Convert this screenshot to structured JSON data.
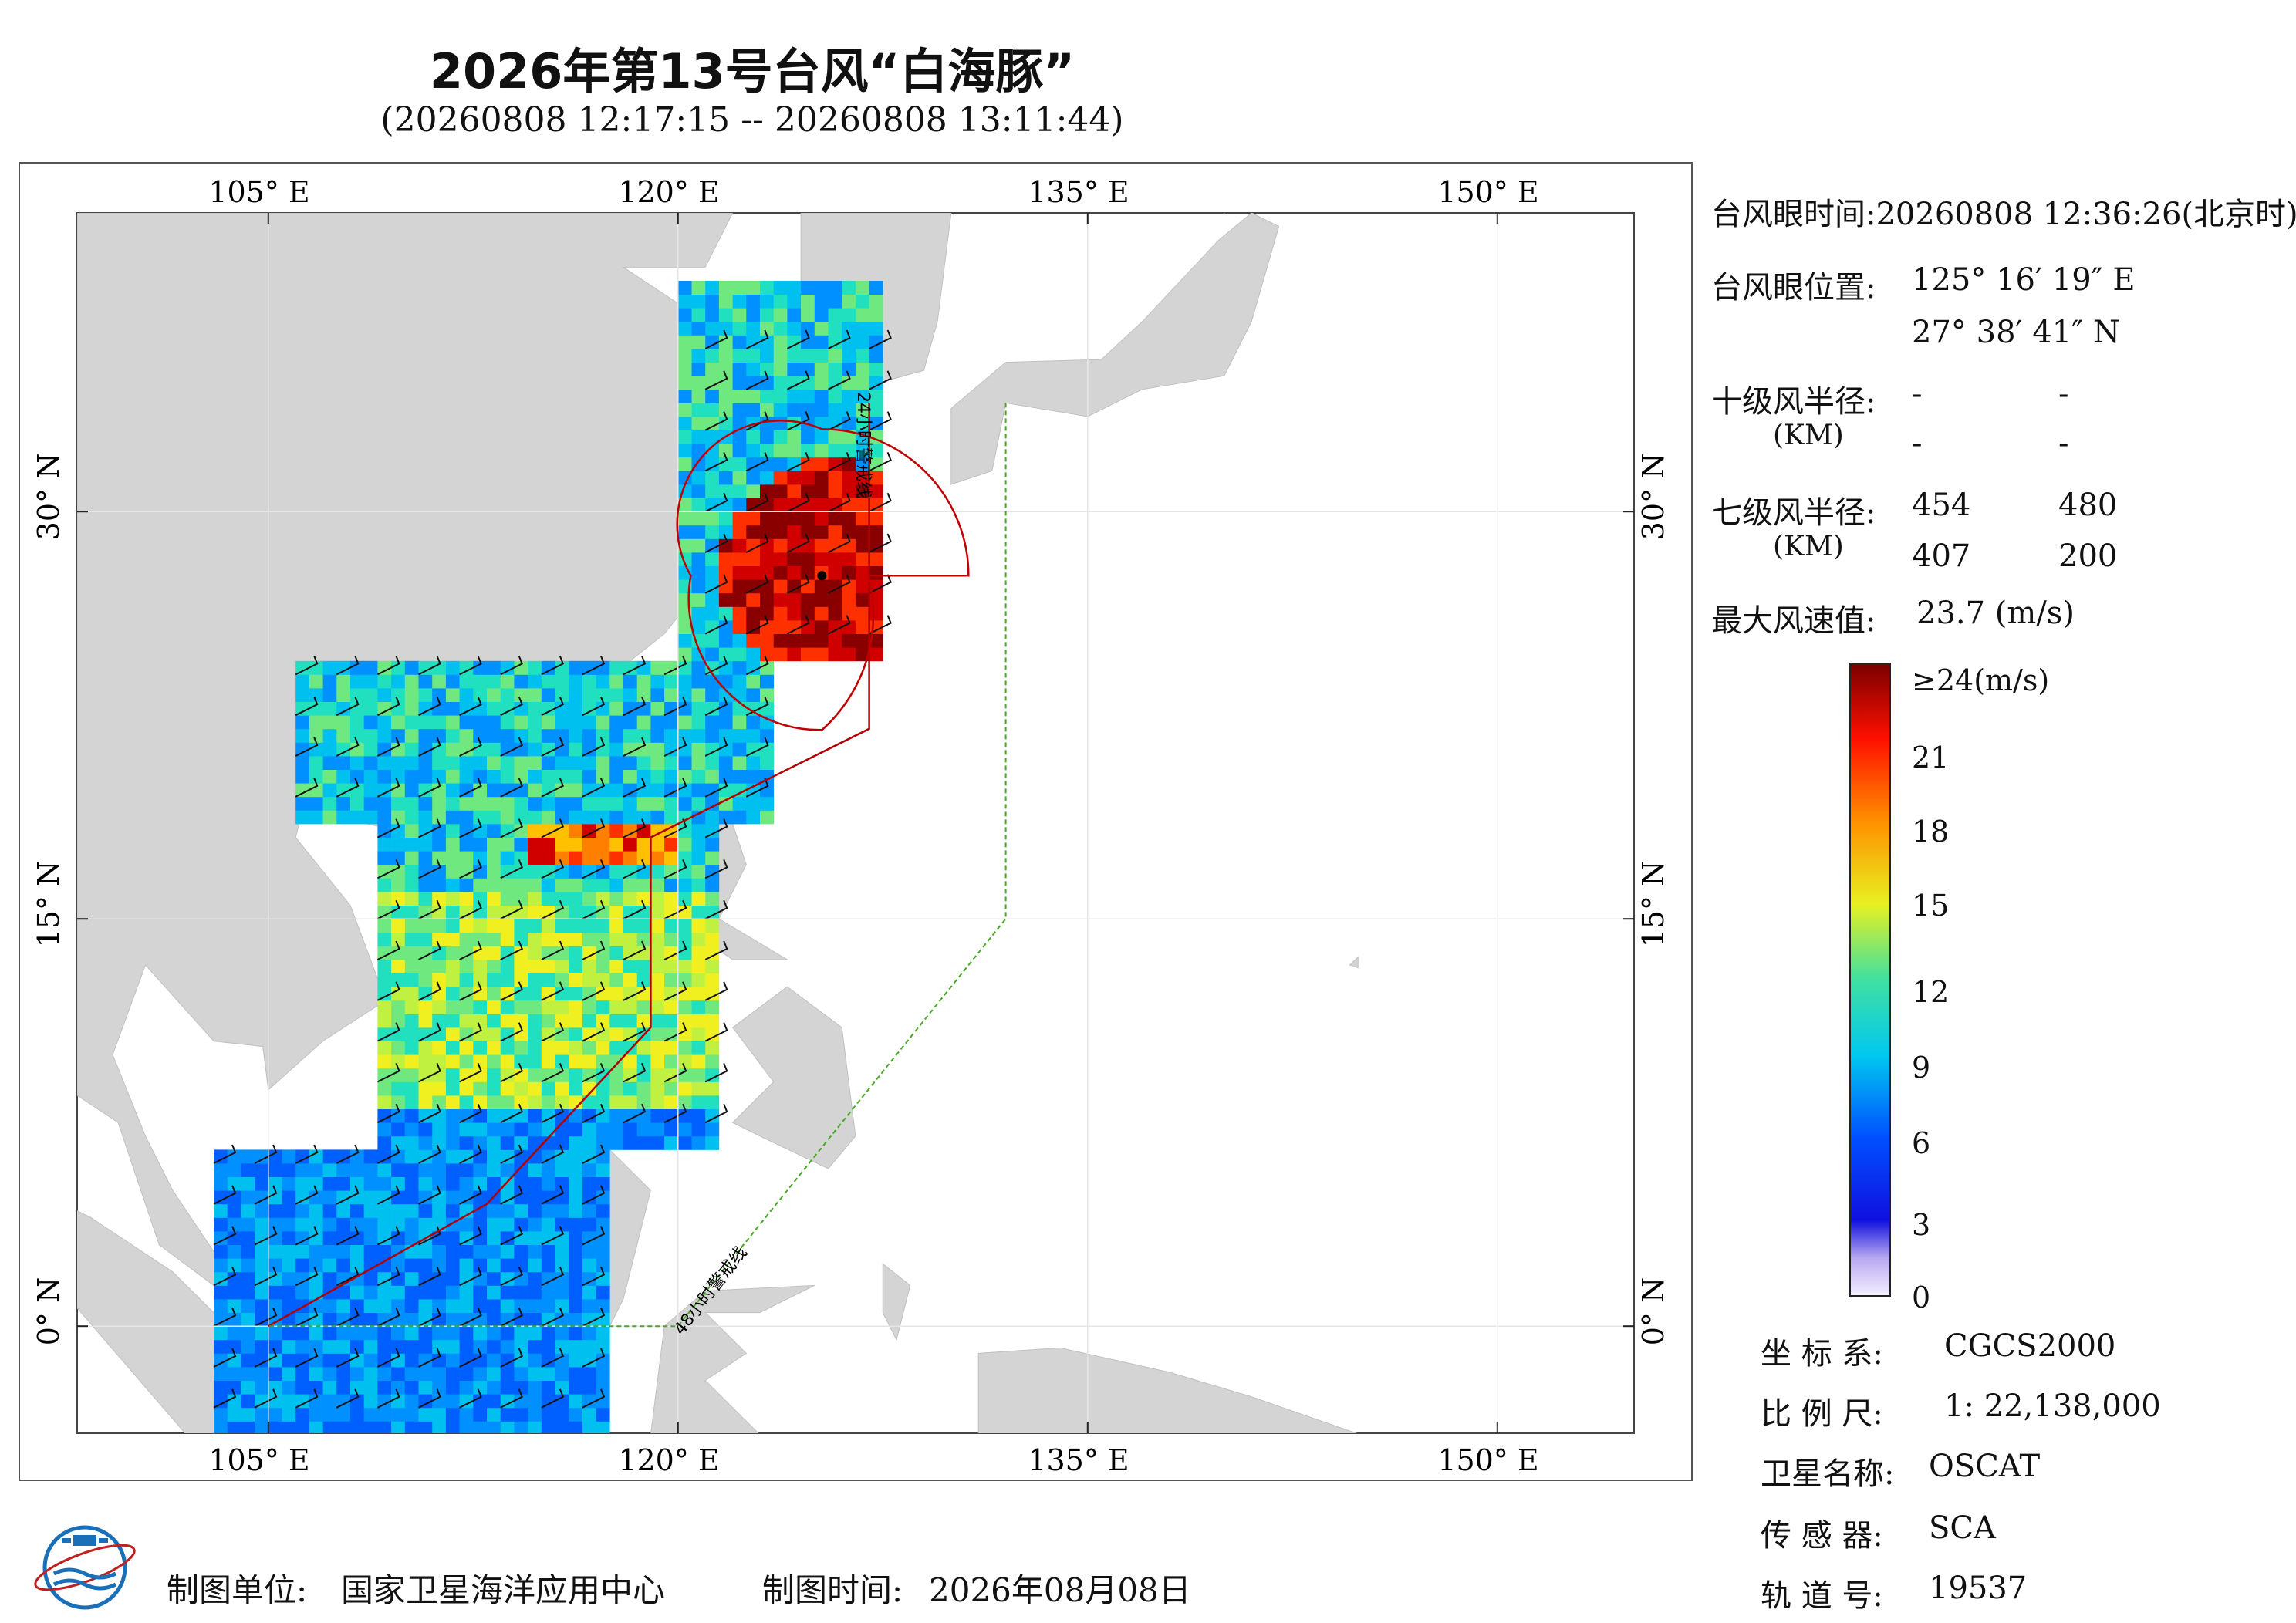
{
  "header": {
    "title": "2026年第13号台风“白海豚”",
    "subtitle": "(20260808 12:17:15 -- 20260808 13:11:44)"
  },
  "map": {
    "lon_labels": [
      "105° E",
      "120° E",
      "135° E",
      "150° E"
    ],
    "lat_labels": [
      "30° N",
      "15° N",
      "0° N"
    ],
    "warning_24h": "24小时警戒线",
    "warning_48h": "48小时警戒线",
    "colors": {
      "land": "#d4d4d4",
      "sea": "#ffffff",
      "radius_line": "#c00000",
      "warning24": "#b00000",
      "warning48": "#44aa22"
    }
  },
  "info": {
    "eye_time_label": "台风眼时间:",
    "eye_time_value": "20260808 12:36:26(北京时)",
    "eye_pos_label": "台风眼位置:",
    "eye_lon": "125° 16′ 19″ E",
    "eye_lat": "27° 38′ 41″ N",
    "r10_label": "十级风半径:",
    "r10_unit": "(KM)",
    "r10_values": [
      "-",
      "-",
      "-",
      "-"
    ],
    "r7_label": "七级风半径:",
    "r7_unit": "(KM)",
    "r7_values": [
      "454",
      "480",
      "407",
      "200"
    ],
    "max_wind_label": "最大风速值:",
    "max_wind_value": "23.7  (m/s)"
  },
  "colorbar": {
    "ticks": [
      "≥24(m/s)",
      "21",
      "18",
      "15",
      "12",
      "9",
      "6",
      "3",
      "0"
    ]
  },
  "meta": {
    "coord_label": "坐 标 系:",
    "coord_value": "CGCS2000",
    "scale_label": "比 例 尺:",
    "scale_value": "1: 22,138,000",
    "satellite_label": "卫星名称:",
    "satellite_value": "OSCAT",
    "sensor_label": "传 感 器:",
    "sensor_value": "SCA",
    "orbit_label": "轨 道 号:",
    "orbit_value": "19537"
  },
  "footer": {
    "maker_label": "制图单位:",
    "maker_value": "国家卫星海洋应用中心",
    "date_label": "制图时间:",
    "date_value": "2026年08月08日"
  }
}
